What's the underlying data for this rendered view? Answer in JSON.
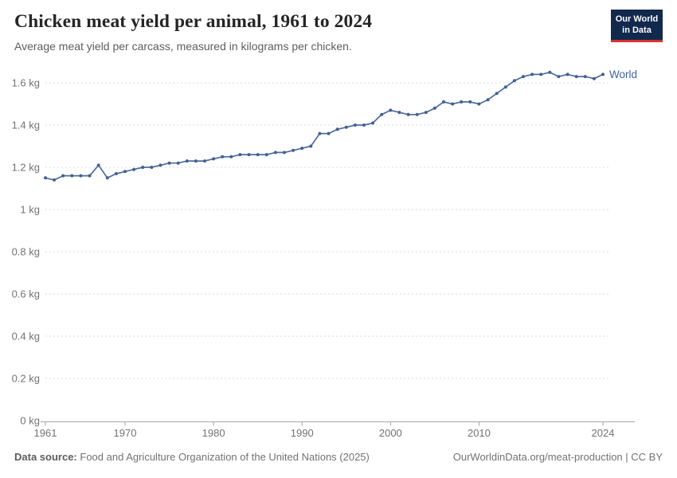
{
  "header": {
    "title": "Chicken meat yield per animal, 1961 to 2024",
    "subtitle": "Average meat yield per carcass, measured in kilograms per chicken.",
    "logo": {
      "line1": "Our World",
      "line2": "in Data",
      "bg_color": "#12294e",
      "accent_color": "#d6342c"
    }
  },
  "chart_data": {
    "type": "line",
    "title": "Chicken meat yield per animal, 1961 to 2024",
    "xlabel": "",
    "ylabel": "kilograms per chicken",
    "grid": true,
    "legend_position": "end-of-line",
    "ylim": [
      0,
      1.67
    ],
    "xlim": [
      1961,
      2024
    ],
    "x_ticks": [
      {
        "value": 1961,
        "label": "1961"
      },
      {
        "value": 1970,
        "label": "1970"
      },
      {
        "value": 1980,
        "label": "1980"
      },
      {
        "value": 1990,
        "label": "1990"
      },
      {
        "value": 2000,
        "label": "2000"
      },
      {
        "value": 2010,
        "label": "2010"
      },
      {
        "value": 2024,
        "label": "2024"
      }
    ],
    "y_ticks": [
      {
        "value": 0,
        "label": "0 kg"
      },
      {
        "value": 0.2,
        "label": "0.2 kg"
      },
      {
        "value": 0.4,
        "label": "0.4 kg"
      },
      {
        "value": 0.6,
        "label": "0.6 kg"
      },
      {
        "value": 0.8,
        "label": "0.8 kg"
      },
      {
        "value": 1,
        "label": "1 kg"
      },
      {
        "value": 1.2,
        "label": "1.2 kg"
      },
      {
        "value": 1.4,
        "label": "1.4 kg"
      },
      {
        "value": 1.6,
        "label": "1.6 kg"
      }
    ],
    "x": [
      1961,
      1962,
      1963,
      1964,
      1965,
      1966,
      1967,
      1968,
      1969,
      1970,
      1971,
      1972,
      1973,
      1974,
      1975,
      1976,
      1977,
      1978,
      1979,
      1980,
      1981,
      1982,
      1983,
      1984,
      1985,
      1986,
      1987,
      1988,
      1989,
      1990,
      1991,
      1992,
      1993,
      1994,
      1995,
      1996,
      1997,
      1998,
      1999,
      2000,
      2001,
      2002,
      2003,
      2004,
      2005,
      2006,
      2007,
      2008,
      2009,
      2010,
      2011,
      2012,
      2013,
      2014,
      2015,
      2016,
      2017,
      2018,
      2019,
      2020,
      2021,
      2022,
      2023,
      2024
    ],
    "series": [
      {
        "name": "World",
        "color": "#4e6ba3",
        "marker_color": "#43608f",
        "label_color": "#3c64a0",
        "values": [
          1.15,
          1.14,
          1.16,
          1.16,
          1.16,
          1.16,
          1.21,
          1.15,
          1.17,
          1.18,
          1.19,
          1.2,
          1.2,
          1.21,
          1.22,
          1.22,
          1.23,
          1.23,
          1.23,
          1.24,
          1.25,
          1.25,
          1.26,
          1.26,
          1.26,
          1.26,
          1.27,
          1.27,
          1.28,
          1.29,
          1.3,
          1.36,
          1.36,
          1.38,
          1.39,
          1.4,
          1.4,
          1.41,
          1.45,
          1.47,
          1.46,
          1.45,
          1.45,
          1.46,
          1.48,
          1.51,
          1.5,
          1.51,
          1.51,
          1.5,
          1.52,
          1.55,
          1.58,
          1.61,
          1.63,
          1.64,
          1.64,
          1.65,
          1.63,
          1.64,
          1.63,
          1.63,
          1.62,
          1.64
        ]
      }
    ],
    "axis_color": "#a5a5a5",
    "gridline_color": "#dcdcdc",
    "tick_label_color": "#737373"
  },
  "footer": {
    "source_label": "Data source:",
    "source_value": "Food and Agriculture Organization of the United Nations (2025)",
    "credit": "OurWorldinData.org/meat-production | CC BY"
  }
}
